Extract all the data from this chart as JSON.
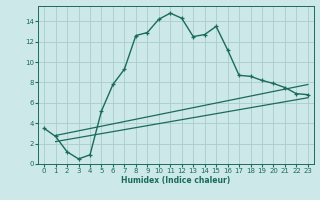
{
  "xlabel": "Humidex (Indice chaleur)",
  "background_color": "#cce8e8",
  "grid_color": "#aacccc",
  "line_color": "#1a6b5a",
  "xlim": [
    -0.5,
    23.5
  ],
  "ylim": [
    0,
    15.5
  ],
  "xticks": [
    0,
    1,
    2,
    3,
    4,
    5,
    6,
    7,
    8,
    9,
    10,
    11,
    12,
    13,
    14,
    15,
    16,
    17,
    18,
    19,
    20,
    21,
    22,
    23
  ],
  "yticks": [
    0,
    2,
    4,
    6,
    8,
    10,
    12,
    14
  ],
  "curve1_x": [
    0,
    1,
    2,
    3,
    4,
    5,
    6,
    7,
    8,
    9,
    10,
    11,
    12,
    13,
    14,
    15,
    16,
    17,
    18,
    19,
    20,
    21,
    22,
    23
  ],
  "curve1_y": [
    3.5,
    2.7,
    1.2,
    0.5,
    0.9,
    5.2,
    7.8,
    9.3,
    12.6,
    12.9,
    14.2,
    14.8,
    14.3,
    12.5,
    12.7,
    13.5,
    11.2,
    8.7,
    8.6,
    8.2,
    7.9,
    7.5,
    6.9,
    6.8
  ],
  "curve2_x": [
    1,
    23
  ],
  "curve2_y": [
    2.2,
    6.5
  ],
  "curve3_x": [
    1,
    23
  ],
  "curve3_y": [
    2.8,
    7.8
  ]
}
